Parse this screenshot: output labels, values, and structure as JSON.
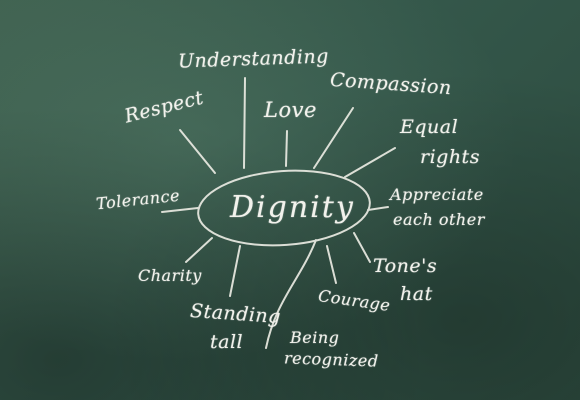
{
  "diagram": {
    "center": "Dignity",
    "nodes": [
      {
        "id": "understanding",
        "lines": [
          "Understanding"
        ]
      },
      {
        "id": "respect",
        "lines": [
          "Respect"
        ]
      },
      {
        "id": "love",
        "lines": [
          "Love"
        ]
      },
      {
        "id": "compassion",
        "lines": [
          "Compassion"
        ]
      },
      {
        "id": "equal-rights",
        "lines": [
          "Equal",
          "rights"
        ]
      },
      {
        "id": "tolerance",
        "lines": [
          "Tolerance"
        ]
      },
      {
        "id": "appreciate",
        "lines": [
          "Appreciate",
          "each other"
        ]
      },
      {
        "id": "charity",
        "lines": [
          "Charity"
        ]
      },
      {
        "id": "tones-hat",
        "lines": [
          "Tone's",
          "hat"
        ]
      },
      {
        "id": "standing-tall",
        "lines": [
          "Standing",
          "tall"
        ]
      },
      {
        "id": "courage",
        "lines": [
          "Courage"
        ]
      },
      {
        "id": "being-recognized",
        "lines": [
          "Being",
          "recognized"
        ]
      }
    ]
  }
}
